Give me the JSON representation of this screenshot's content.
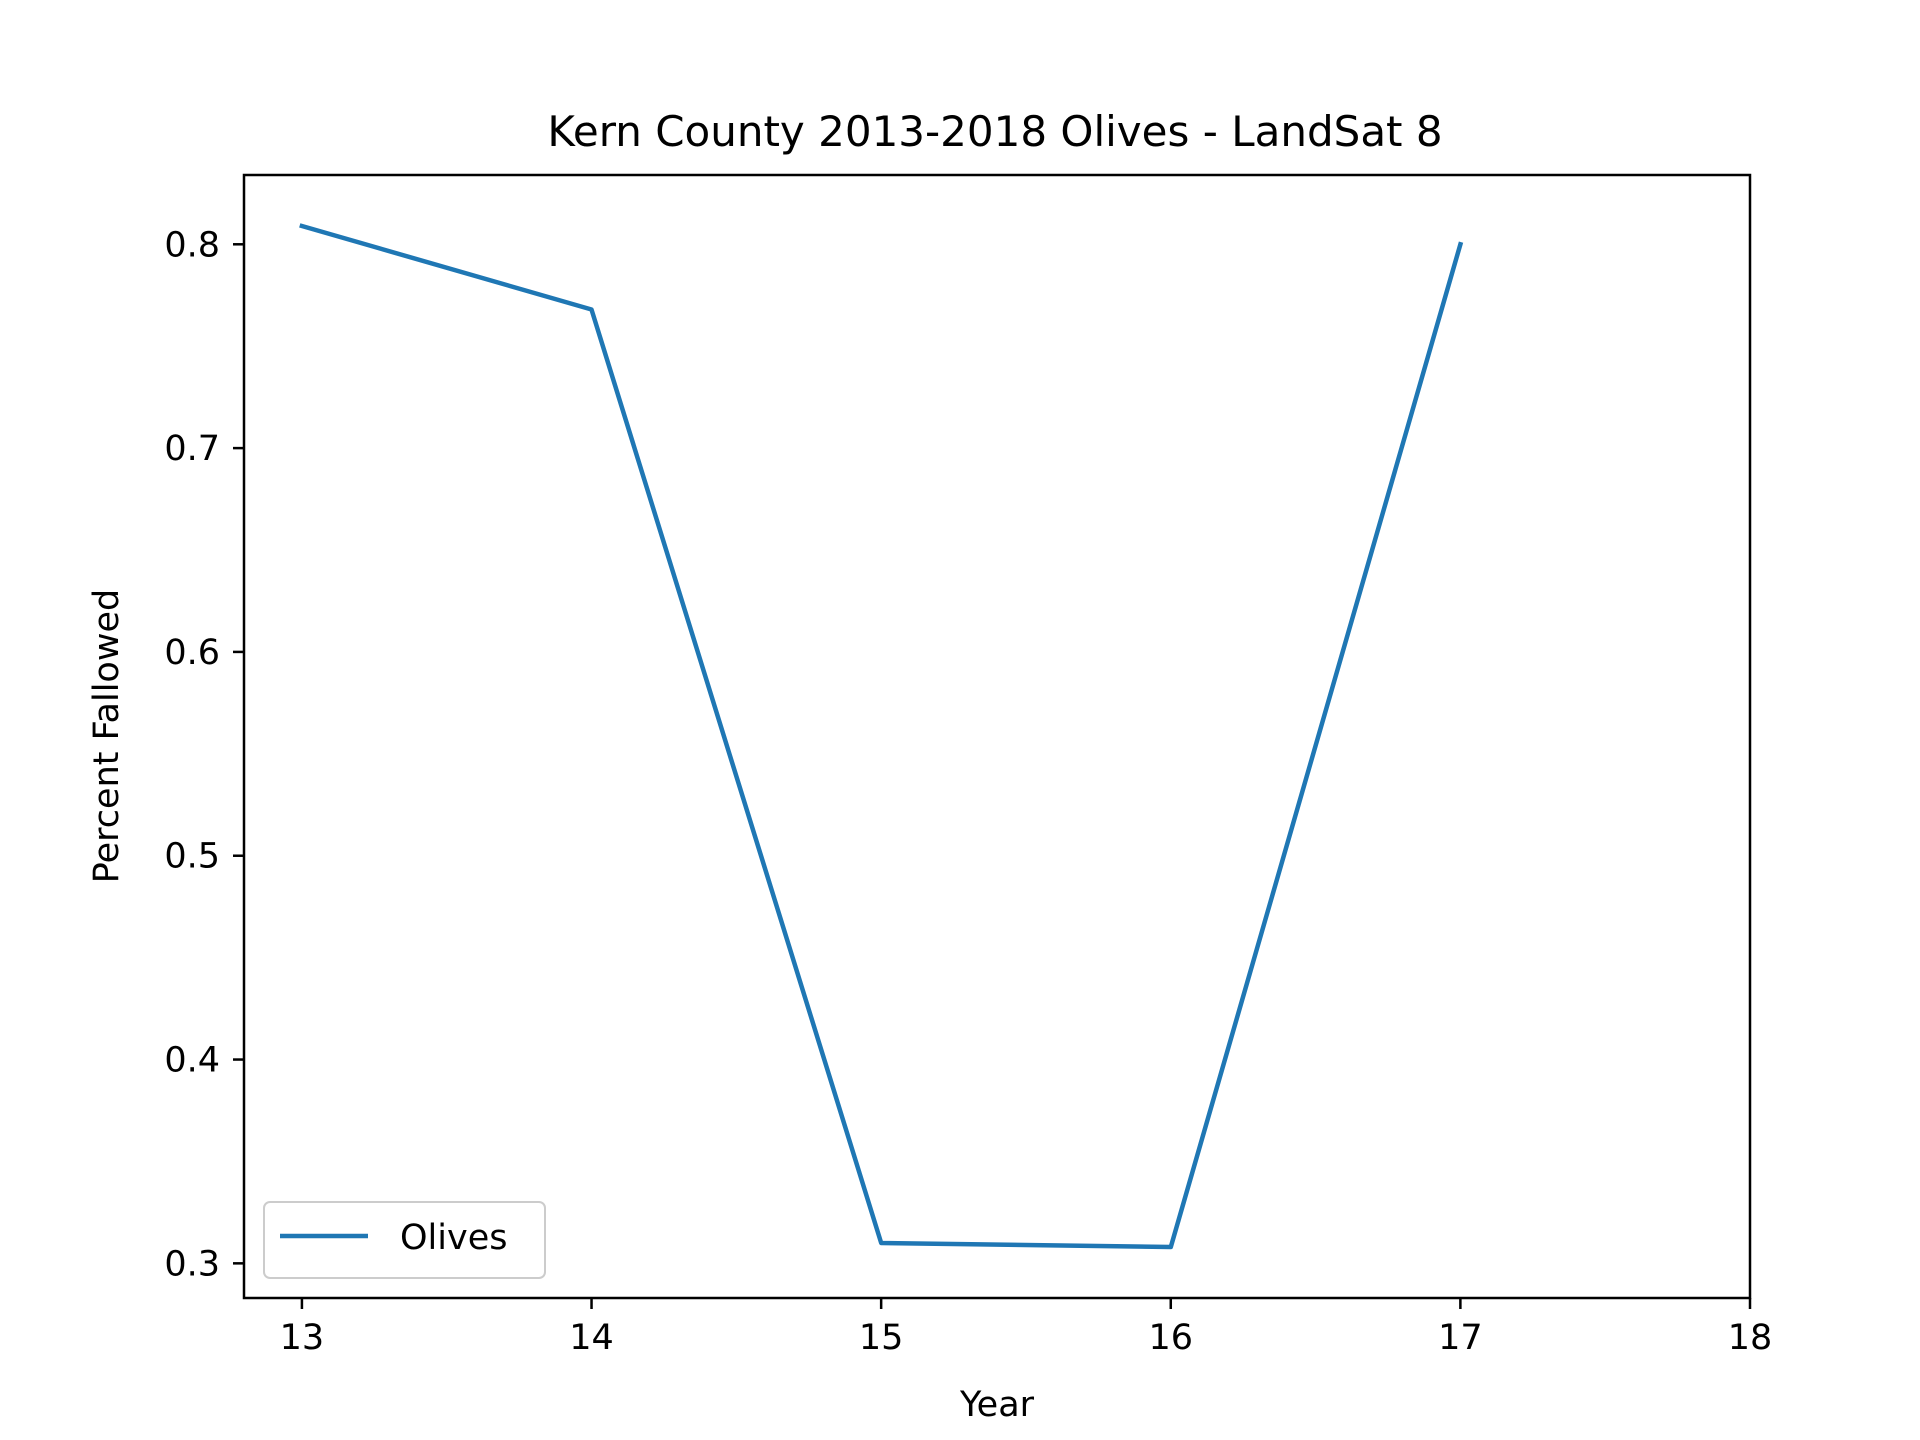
{
  "chart_data": {
    "type": "line",
    "title": "Kern County 2013-2018 Olives - LandSat 8",
    "xlabel": "Year",
    "ylabel": "Percent Fallowed",
    "xlim": [
      12.8,
      18
    ],
    "ylim": [
      0.283,
      0.834
    ],
    "xticks": [
      13,
      14,
      15,
      16,
      17,
      18
    ],
    "xtick_labels": [
      "13",
      "14",
      "15",
      "16",
      "17",
      "18"
    ],
    "yticks": [
      0.3,
      0.4,
      0.5,
      0.6,
      0.7,
      0.8
    ],
    "ytick_labels": [
      "0.3",
      "0.4",
      "0.5",
      "0.6",
      "0.7",
      "0.8"
    ],
    "grid": false,
    "legend_position": "lower-left",
    "series": [
      {
        "name": "Olives",
        "color": "#1f77b4",
        "x": [
          13,
          14,
          15,
          16,
          17
        ],
        "y": [
          0.809,
          0.768,
          0.31,
          0.308,
          0.8
        ]
      }
    ]
  }
}
